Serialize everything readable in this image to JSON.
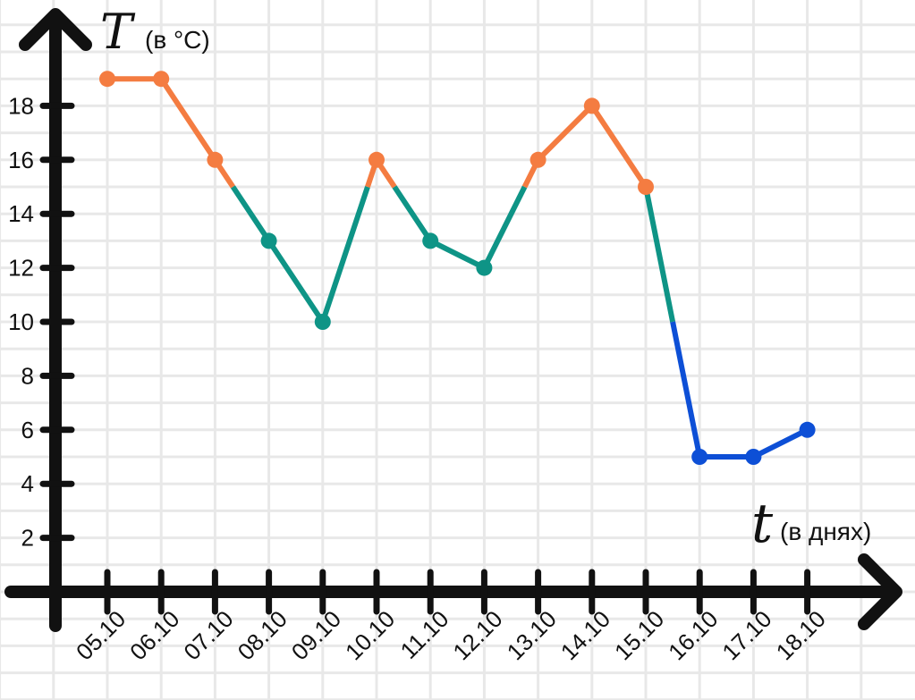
{
  "chart_data": {
    "type": "line",
    "x": [
      "05.10",
      "06.10",
      "07.10",
      "08.10",
      "09.10",
      "10.10",
      "11.10",
      "12.10",
      "13.10",
      "14.10",
      "15.10",
      "16.10",
      "17.10",
      "18.10"
    ],
    "y": [
      19,
      19,
      16,
      13,
      10,
      16,
      13,
      12,
      16,
      18,
      15,
      5,
      5,
      6
    ],
    "ylim": [
      0,
      20
    ],
    "y_ticks": [
      2,
      4,
      6,
      8,
      10,
      12,
      14,
      16,
      18
    ],
    "xlabel_var": "t",
    "xlabel_unit": "(в днях)",
    "ylabel_var": "T",
    "ylabel_unit": "(в °C)",
    "grid": true,
    "color_bands": [
      {
        "range": [
          15,
          20
        ],
        "color": "#f47c41"
      },
      {
        "range": [
          10,
          15
        ],
        "color": "#0e9486"
      },
      {
        "range": [
          0,
          10
        ],
        "color": "#0d4fd6"
      }
    ],
    "axis_color": "#111111",
    "grid_color": "#e8e8e8"
  }
}
